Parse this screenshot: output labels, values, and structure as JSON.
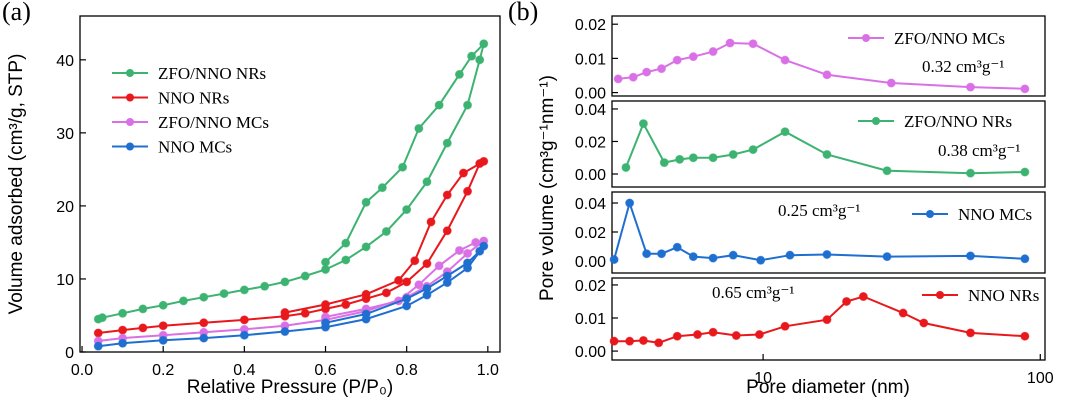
{
  "chart_data": [
    {
      "type": "line",
      "panel_label": "(a)",
      "xlabel": "Relative Pressure (P/P₀)",
      "ylabel": "Volume adsorbed (cm³/g, STP)",
      "xlim": [
        -0.005,
        1.03
      ],
      "ylim": [
        0,
        46
      ],
      "xticks": [
        {
          "value": 0,
          "label": "0.0"
        },
        0.2,
        0.4,
        0.6,
        0.8,
        {
          "value": 1,
          "label": "1.0"
        }
      ],
      "yticks": [
        0,
        10,
        20,
        30,
        40
      ],
      "series": [
        {
          "name": "ZFO/NNO NRs",
          "color": "#3cb371",
          "x": [
            0.04,
            0.05,
            0.1,
            0.15,
            0.2,
            0.25,
            0.3,
            0.35,
            0.4,
            0.45,
            0.5,
            0.55,
            0.6,
            0.65,
            0.7,
            0.75,
            0.8,
            0.85,
            0.9,
            0.95,
            0.98,
            0.99,
            0.96,
            0.93,
            0.88,
            0.83,
            0.79,
            0.74,
            0.7,
            0.65,
            0.6
          ],
          "values": [
            4.5,
            4.7,
            5.3,
            5.9,
            6.4,
            7.0,
            7.5,
            8.0,
            8.5,
            9.0,
            9.6,
            10.4,
            11.3,
            12.6,
            14.4,
            16.5,
            19.5,
            23.3,
            28.6,
            33.8,
            40,
            42.2,
            40.5,
            38,
            33.8,
            30.6,
            25.3,
            22.5,
            20.5,
            14.9,
            12.3
          ]
        },
        {
          "name": "NNO NRs",
          "color": "#e8181c",
          "x": [
            0.04,
            0.1,
            0.15,
            0.2,
            0.3,
            0.4,
            0.5,
            0.55,
            0.6,
            0.65,
            0.7,
            0.75,
            0.8,
            0.85,
            0.9,
            0.95,
            0.98,
            0.99,
            0.94,
            0.9,
            0.86,
            0.82,
            0.78,
            0.7,
            0.6,
            0.5
          ],
          "values": [
            2.6,
            3.0,
            3.3,
            3.6,
            4.0,
            4.4,
            4.9,
            5.3,
            5.9,
            6.5,
            7.3,
            8.1,
            9.6,
            12.1,
            16.6,
            22,
            25.8,
            26.1,
            24.5,
            21.5,
            17.8,
            12.5,
            9.8,
            7.9,
            6.5,
            5.4
          ]
        },
        {
          "name": "ZFO/NNO MCs",
          "color": "#da70e6",
          "x": [
            0.04,
            0.1,
            0.2,
            0.3,
            0.4,
            0.5,
            0.6,
            0.7,
            0.8,
            0.85,
            0.9,
            0.95,
            0.99,
            0.97,
            0.93,
            0.88,
            0.83,
            0.78,
            0.7,
            0.6
          ],
          "values": [
            1.5,
            1.9,
            2.3,
            2.7,
            3.1,
            3.6,
            4.4,
            5.6,
            7.5,
            9.0,
            11.0,
            13.5,
            15.2,
            15.0,
            13.9,
            11.8,
            9.2,
            7.0,
            5.9,
            4.8
          ]
        },
        {
          "name": "NNO MCs",
          "color": "#1f6fd0",
          "x": [
            0.04,
            0.1,
            0.2,
            0.3,
            0.4,
            0.5,
            0.6,
            0.7,
            0.8,
            0.85,
            0.9,
            0.95,
            0.99,
            0.98,
            0.95,
            0.9,
            0.85,
            0.8,
            0.7,
            0.6
          ],
          "values": [
            0.8,
            1.2,
            1.6,
            1.9,
            2.3,
            2.8,
            3.4,
            4.5,
            6.3,
            7.8,
            9.5,
            11.5,
            14.5,
            13.8,
            12.2,
            10.4,
            8.7,
            7.3,
            5.2,
            4.0
          ]
        }
      ]
    },
    {
      "type": "line",
      "panel_label": "(b)",
      "ylabel": "Pore volume (cm³g⁻¹nm⁻¹)",
      "log_x": true,
      "xlim": [
        2.85,
        104
      ],
      "ylim": [
        -0.001,
        0.0224
      ],
      "yticks": [
        {
          "value": 0,
          "label": "0.00"
        },
        0.01,
        0.02
      ],
      "annotation": "0.32 cm³g⁻¹",
      "series": [
        {
          "name": "ZFO/NNO MCs",
          "color": "#da70e6",
          "x": [
            3.0,
            3.4,
            3.8,
            4.3,
            4.9,
            5.6,
            6.6,
            7.6,
            9.2,
            12,
            17,
            29,
            56,
            88
          ],
          "values": [
            0.004,
            0.0045,
            0.006,
            0.007,
            0.0095,
            0.0105,
            0.012,
            0.0145,
            0.0143,
            0.0095,
            0.0052,
            0.0028,
            0.0016,
            0.0011
          ]
        }
      ]
    },
    {
      "type": "line",
      "log_x": true,
      "xlim": [
        2.85,
        104
      ],
      "ylim": [
        -0.008,
        0.0449
      ],
      "yticks": [
        {
          "value": 0,
          "label": "0.00"
        },
        0.02,
        0.04
      ],
      "annotation": "0.38 cm³g⁻¹",
      "series": [
        {
          "name": "ZFO/NNO NRs",
          "color": "#3cb371",
          "x": [
            3.2,
            3.7,
            4.4,
            5.0,
            5.6,
            6.6,
            7.8,
            9.2,
            12,
            17,
            28,
            56,
            88
          ],
          "values": [
            0.004,
            0.031,
            0.007,
            0.009,
            0.01,
            0.01,
            0.012,
            0.015,
            0.026,
            0.012,
            0.002,
            0.0005,
            0.0012
          ]
        }
      ]
    },
    {
      "type": "line",
      "log_x": true,
      "xlim": [
        2.85,
        104
      ],
      "ylim": [
        -0.0083,
        0.0476
      ],
      "yticks": [
        {
          "value": 0,
          "label": "0.00"
        },
        0.02,
        0.04
      ],
      "annotation": "0.25 cm³g⁻¹",
      "series": [
        {
          "name": "NNO MCs",
          "color": "#1f6fd0",
          "x": [
            2.9,
            3.3,
            3.8,
            4.3,
            4.9,
            5.6,
            6.6,
            7.8,
            9.8,
            12.5,
            17,
            28,
            56,
            88
          ],
          "values": [
            0.001,
            0.04,
            0.005,
            0.005,
            0.0095,
            0.003,
            0.002,
            0.004,
            0.0005,
            0.004,
            0.0045,
            0.003,
            0.0035,
            0.0015
          ]
        }
      ]
    },
    {
      "type": "line",
      "log_x": true,
      "xlabel": "Pore diameter (nm)",
      "xlim": [
        2.85,
        104
      ],
      "ylim": [
        -0.0027,
        0.0221
      ],
      "xticks": [
        10,
        100
      ],
      "yticks": [
        {
          "value": 0,
          "label": "0.00"
        },
        0.01,
        0.02
      ],
      "annotation": "0.65 cm³g⁻¹",
      "series": [
        {
          "name": "NNO NRs",
          "color": "#e8181c",
          "x": [
            2.9,
            3.3,
            3.7,
            4.2,
            4.9,
            5.8,
            6.6,
            8,
            9.7,
            12,
            17,
            20,
            23,
            32,
            38,
            56,
            88
          ],
          "values": [
            0.003,
            0.003,
            0.0032,
            0.0025,
            0.0045,
            0.005,
            0.0057,
            0.0047,
            0.005,
            0.0075,
            0.0095,
            0.015,
            0.0165,
            0.0115,
            0.0085,
            0.0055,
            0.0045
          ]
        }
      ]
    }
  ]
}
